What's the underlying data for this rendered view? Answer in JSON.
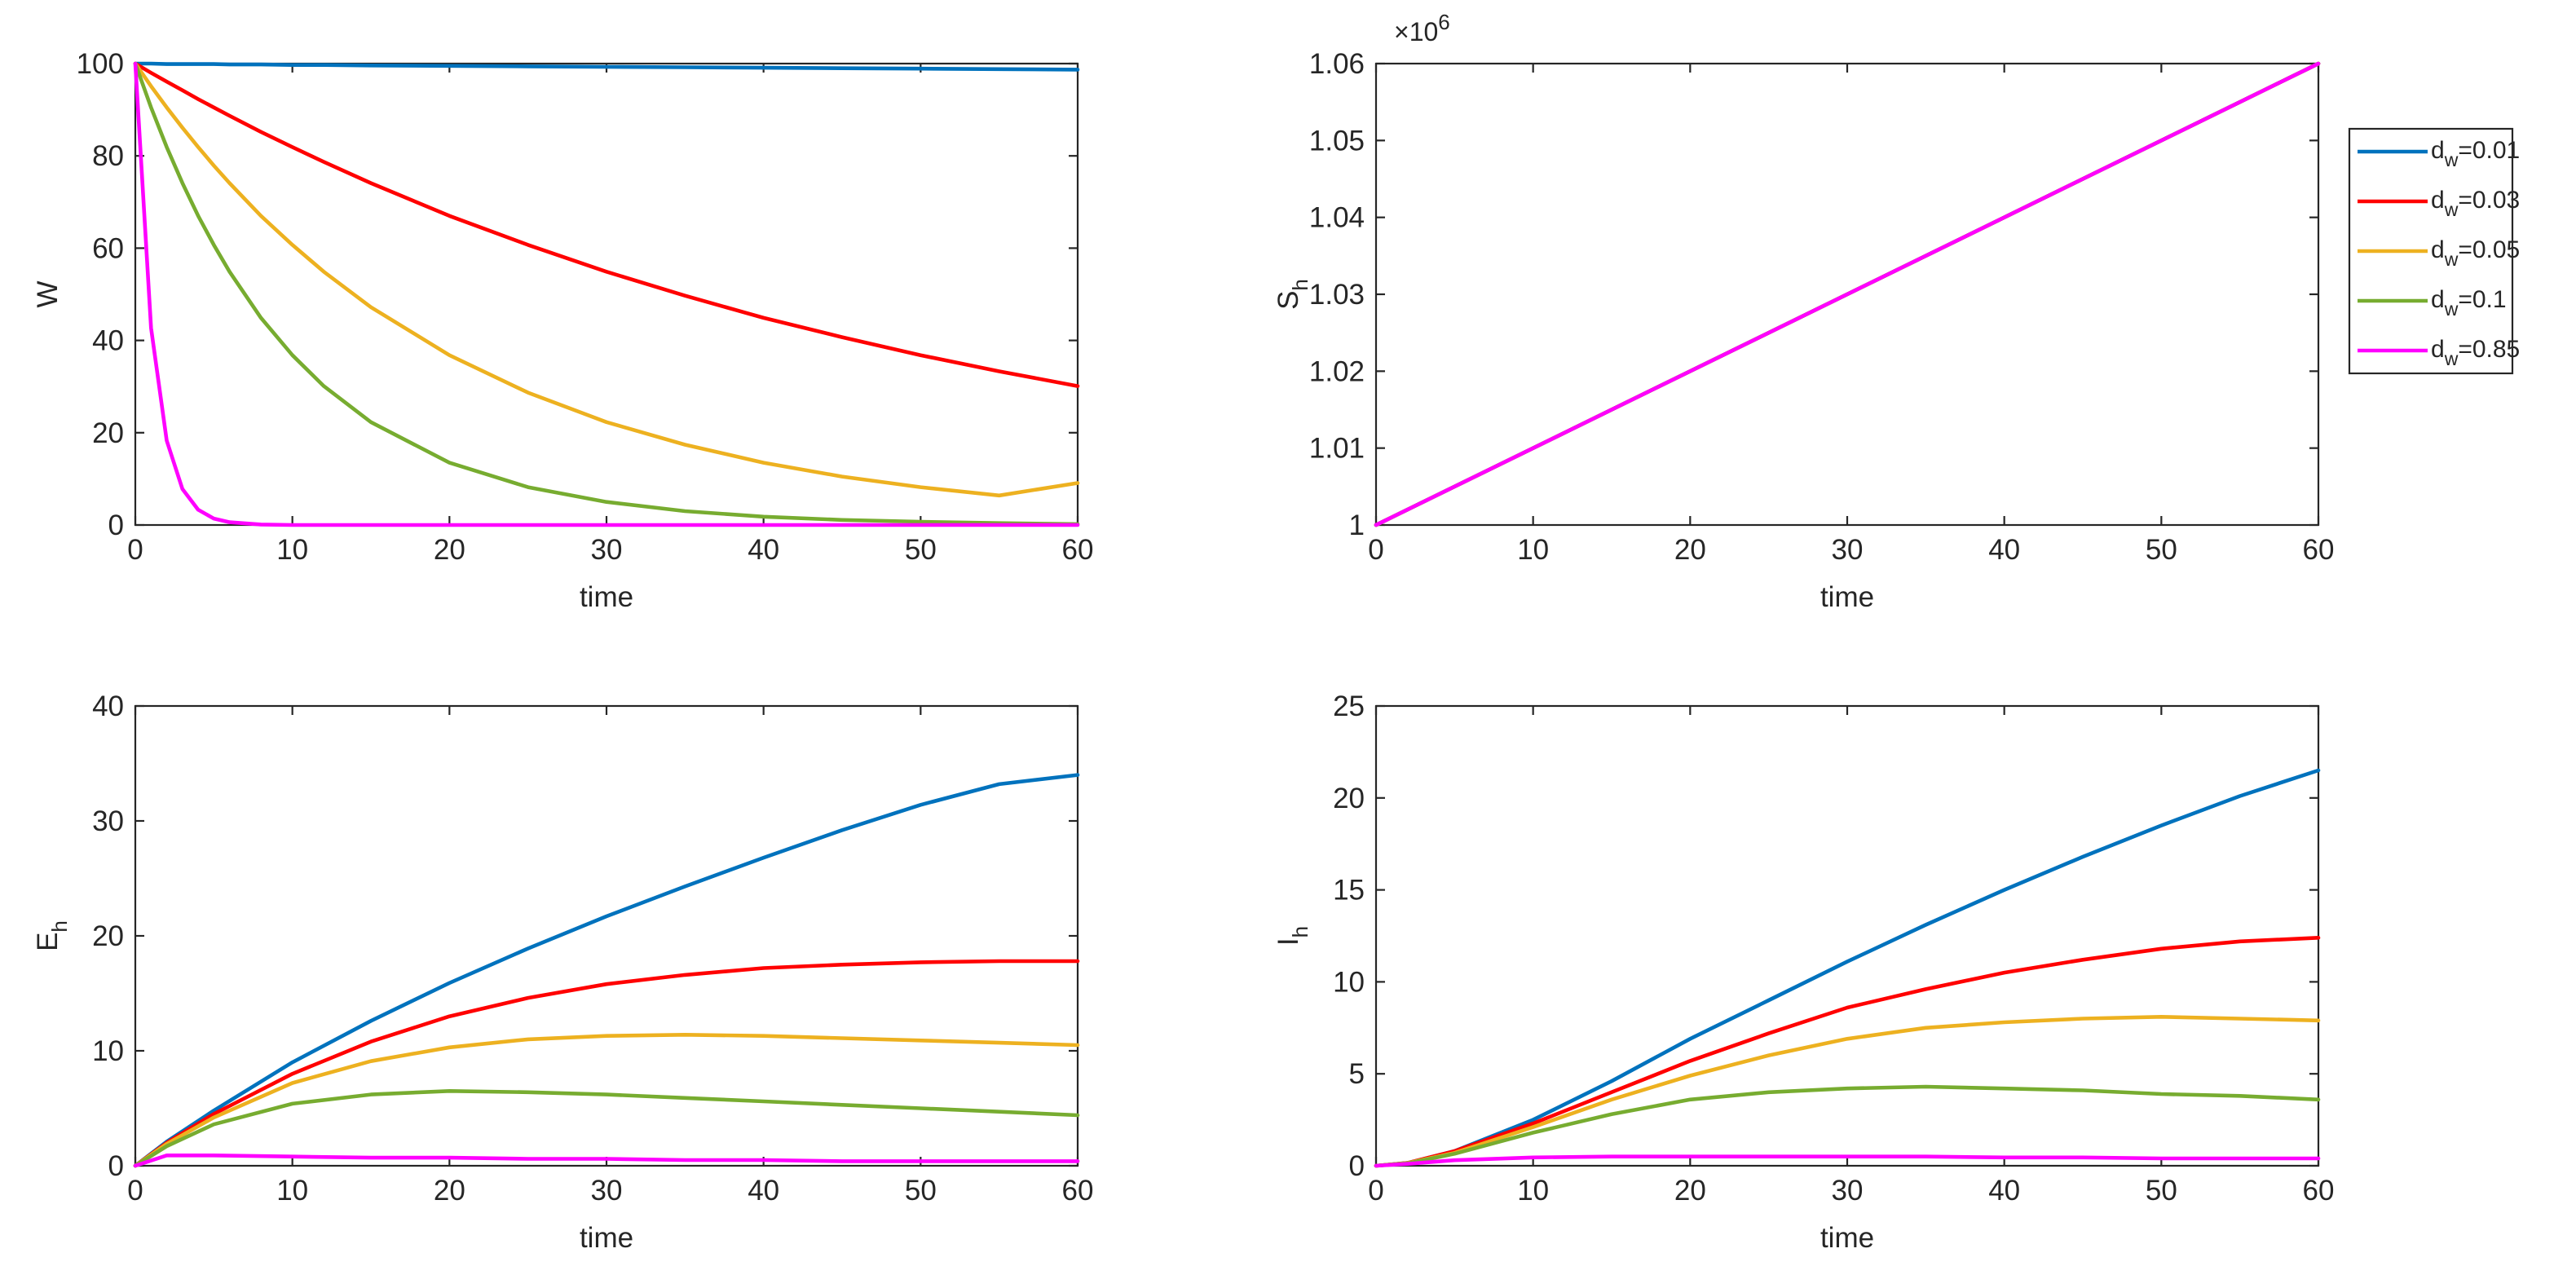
{
  "colors": {
    "dw_0.01": "#0072BD",
    "dw_0.03": "#FF0000",
    "dw_0.05": "#EDB120",
    "dw_0.1": "#77AC30",
    "dw_0.85": "#FF00FF",
    "axis": "#262626"
  },
  "legend": {
    "location": "right of top-right panel",
    "entries": [
      {
        "key": "dw_0.01",
        "base": "d",
        "sub": "w",
        "rest": "=0.01"
      },
      {
        "key": "dw_0.03",
        "base": "d",
        "sub": "w",
        "rest": "=0.03"
      },
      {
        "key": "dw_0.05",
        "base": "d",
        "sub": "w",
        "rest": "=0.05"
      },
      {
        "key": "dw_0.1",
        "base": "d",
        "sub": "w",
        "rest": "=0.1"
      },
      {
        "key": "dw_0.85",
        "base": "d",
        "sub": "w",
        "rest": "=0.85"
      }
    ]
  },
  "chart_data": [
    {
      "id": "W",
      "type": "line",
      "xlabel": "time",
      "ylabel": {
        "base": "W",
        "sub": ""
      },
      "xlim": [
        0,
        60
      ],
      "ylim": [
        0,
        100
      ],
      "xticks": [
        0,
        10,
        20,
        30,
        40,
        50,
        60
      ],
      "xtick_labels": [
        "0",
        "10",
        "20",
        "30",
        "40",
        "50",
        "60"
      ],
      "yticks": [
        0,
        20,
        40,
        60,
        80,
        100
      ],
      "ytick_labels": [
        "0",
        "20",
        "40",
        "60",
        "80",
        "100"
      ],
      "exponent_label": null,
      "x": [
        0,
        1,
        2,
        3,
        4,
        5,
        6,
        8,
        10,
        12,
        15,
        20,
        25,
        30,
        35,
        40,
        45,
        50,
        55,
        60
      ],
      "series": [
        {
          "name": "dw_0.01",
          "values": [
            100,
            100,
            99.9,
            99.9,
            99.9,
            99.9,
            99.8,
            99.8,
            99.7,
            99.7,
            99.6,
            99.5,
            99.4,
            99.3,
            99.2,
            99.1,
            99.0,
            98.9,
            98.8,
            98.7
          ]
        },
        {
          "name": "dw_0.03",
          "values": [
            100,
            98.0,
            96.1,
            94.2,
            92.3,
            90.5,
            88.7,
            85.2,
            81.9,
            78.7,
            74.1,
            67.0,
            60.7,
            54.9,
            49.7,
            44.9,
            40.7,
            36.8,
            33.3,
            30.1
          ]
        },
        {
          "name": "dw_0.05",
          "values": [
            100,
            95.1,
            90.5,
            86.1,
            81.9,
            77.9,
            74.1,
            67.0,
            60.7,
            54.9,
            47.2,
            36.8,
            28.7,
            22.3,
            17.4,
            13.5,
            10.5,
            8.2,
            6.4,
            9.1
          ]
        },
        {
          "name": "dw_0.1",
          "values": [
            100,
            90.5,
            81.9,
            74.1,
            67.0,
            60.7,
            54.9,
            44.9,
            36.8,
            30.1,
            22.3,
            13.5,
            8.2,
            5.0,
            3.0,
            1.8,
            1.1,
            0.7,
            0.4,
            0.2
          ]
        },
        {
          "name": "dw_0.85",
          "values": [
            100,
            42.7,
            18.3,
            7.8,
            3.3,
            1.4,
            0.6,
            0.1,
            0,
            0,
            0,
            0,
            0,
            0,
            0,
            0,
            0,
            0,
            0,
            0
          ]
        }
      ]
    },
    {
      "id": "Sh",
      "type": "line",
      "xlabel": "time",
      "ylabel": {
        "base": "S",
        "sub": "h"
      },
      "xlim": [
        0,
        60
      ],
      "ylim": [
        1,
        1.06
      ],
      "xticks": [
        0,
        10,
        20,
        30,
        40,
        50,
        60
      ],
      "xtick_labels": [
        "0",
        "10",
        "20",
        "30",
        "40",
        "50",
        "60"
      ],
      "yticks": [
        1,
        1.01,
        1.02,
        1.03,
        1.04,
        1.05,
        1.06
      ],
      "ytick_labels": [
        "1",
        "1.01",
        "1.02",
        "1.03",
        "1.04",
        "1.05",
        "1.06"
      ],
      "exponent_label": {
        "base": "×10",
        "exp": "6"
      },
      "x": [
        0,
        60
      ],
      "series": [
        {
          "name": "dw_0.01",
          "values": [
            1,
            1.06
          ]
        },
        {
          "name": "dw_0.03",
          "values": [
            1,
            1.06
          ]
        },
        {
          "name": "dw_0.05",
          "values": [
            1,
            1.06
          ]
        },
        {
          "name": "dw_0.1",
          "values": [
            1,
            1.06
          ]
        },
        {
          "name": "dw_0.85",
          "values": [
            1,
            1.06
          ]
        }
      ]
    },
    {
      "id": "Eh",
      "type": "line",
      "xlabel": "time",
      "ylabel": {
        "base": "E",
        "sub": "h"
      },
      "xlim": [
        0,
        60
      ],
      "ylim": [
        0,
        40
      ],
      "xticks": [
        0,
        10,
        20,
        30,
        40,
        50,
        60
      ],
      "xtick_labels": [
        "0",
        "10",
        "20",
        "30",
        "40",
        "50",
        "60"
      ],
      "yticks": [
        0,
        10,
        20,
        30,
        40
      ],
      "ytick_labels": [
        "0",
        "10",
        "20",
        "30",
        "40"
      ],
      "exponent_label": null,
      "x": [
        0,
        2,
        5,
        10,
        15,
        20,
        25,
        30,
        35,
        40,
        45,
        50,
        55,
        60
      ],
      "series": [
        {
          "name": "dw_0.01",
          "values": [
            0,
            2.1,
            4.8,
            9.0,
            12.6,
            15.9,
            18.9,
            21.7,
            24.3,
            26.8,
            29.2,
            31.4,
            33.2,
            34.0
          ]
        },
        {
          "name": "dw_0.03",
          "values": [
            0,
            2.0,
            4.5,
            8.0,
            10.8,
            13.0,
            14.6,
            15.8,
            16.6,
            17.2,
            17.5,
            17.7,
            17.8,
            17.8
          ]
        },
        {
          "name": "dw_0.05",
          "values": [
            0,
            1.9,
            4.2,
            7.2,
            9.1,
            10.3,
            11.0,
            11.3,
            11.4,
            11.3,
            11.1,
            10.9,
            10.7,
            10.5
          ]
        },
        {
          "name": "dw_0.1",
          "values": [
            0,
            1.7,
            3.6,
            5.4,
            6.2,
            6.5,
            6.4,
            6.2,
            5.9,
            5.6,
            5.3,
            5.0,
            4.7,
            4.4
          ]
        },
        {
          "name": "dw_0.85",
          "values": [
            0,
            0.9,
            0.9,
            0.8,
            0.7,
            0.7,
            0.6,
            0.6,
            0.5,
            0.5,
            0.4,
            0.4,
            0.4,
            0.4
          ]
        }
      ]
    },
    {
      "id": "Ih",
      "type": "line",
      "xlabel": "time",
      "ylabel": {
        "base": "I",
        "sub": "h"
      },
      "xlim": [
        0,
        60
      ],
      "ylim": [
        0,
        25
      ],
      "xticks": [
        0,
        10,
        20,
        30,
        40,
        50,
        60
      ],
      "xtick_labels": [
        "0",
        "10",
        "20",
        "30",
        "40",
        "50",
        "60"
      ],
      "yticks": [
        0,
        5,
        10,
        15,
        20,
        25
      ],
      "ytick_labels": [
        "0",
        "5",
        "10",
        "15",
        "20",
        "25"
      ],
      "exponent_label": null,
      "x": [
        0,
        2,
        5,
        10,
        15,
        20,
        25,
        30,
        35,
        40,
        45,
        50,
        55,
        60
      ],
      "series": [
        {
          "name": "dw_0.01",
          "values": [
            0,
            0.15,
            0.8,
            2.5,
            4.6,
            6.9,
            9.0,
            11.1,
            13.1,
            15.0,
            16.8,
            18.5,
            20.1,
            21.5
          ]
        },
        {
          "name": "dw_0.03",
          "values": [
            0,
            0.15,
            0.8,
            2.3,
            4.0,
            5.7,
            7.2,
            8.6,
            9.6,
            10.5,
            11.2,
            11.8,
            12.2,
            12.4
          ]
        },
        {
          "name": "dw_0.05",
          "values": [
            0,
            0.14,
            0.7,
            2.1,
            3.6,
            4.9,
            6.0,
            6.9,
            7.5,
            7.8,
            8.0,
            8.1,
            8.0,
            7.9
          ]
        },
        {
          "name": "dw_0.1",
          "values": [
            0,
            0.13,
            0.65,
            1.8,
            2.8,
            3.6,
            4.0,
            4.2,
            4.3,
            4.2,
            4.1,
            3.9,
            3.8,
            3.6
          ]
        },
        {
          "name": "dw_0.85",
          "values": [
            0,
            0.1,
            0.3,
            0.45,
            0.5,
            0.5,
            0.5,
            0.5,
            0.5,
            0.45,
            0.45,
            0.4,
            0.4,
            0.4
          ]
        }
      ]
    }
  ]
}
